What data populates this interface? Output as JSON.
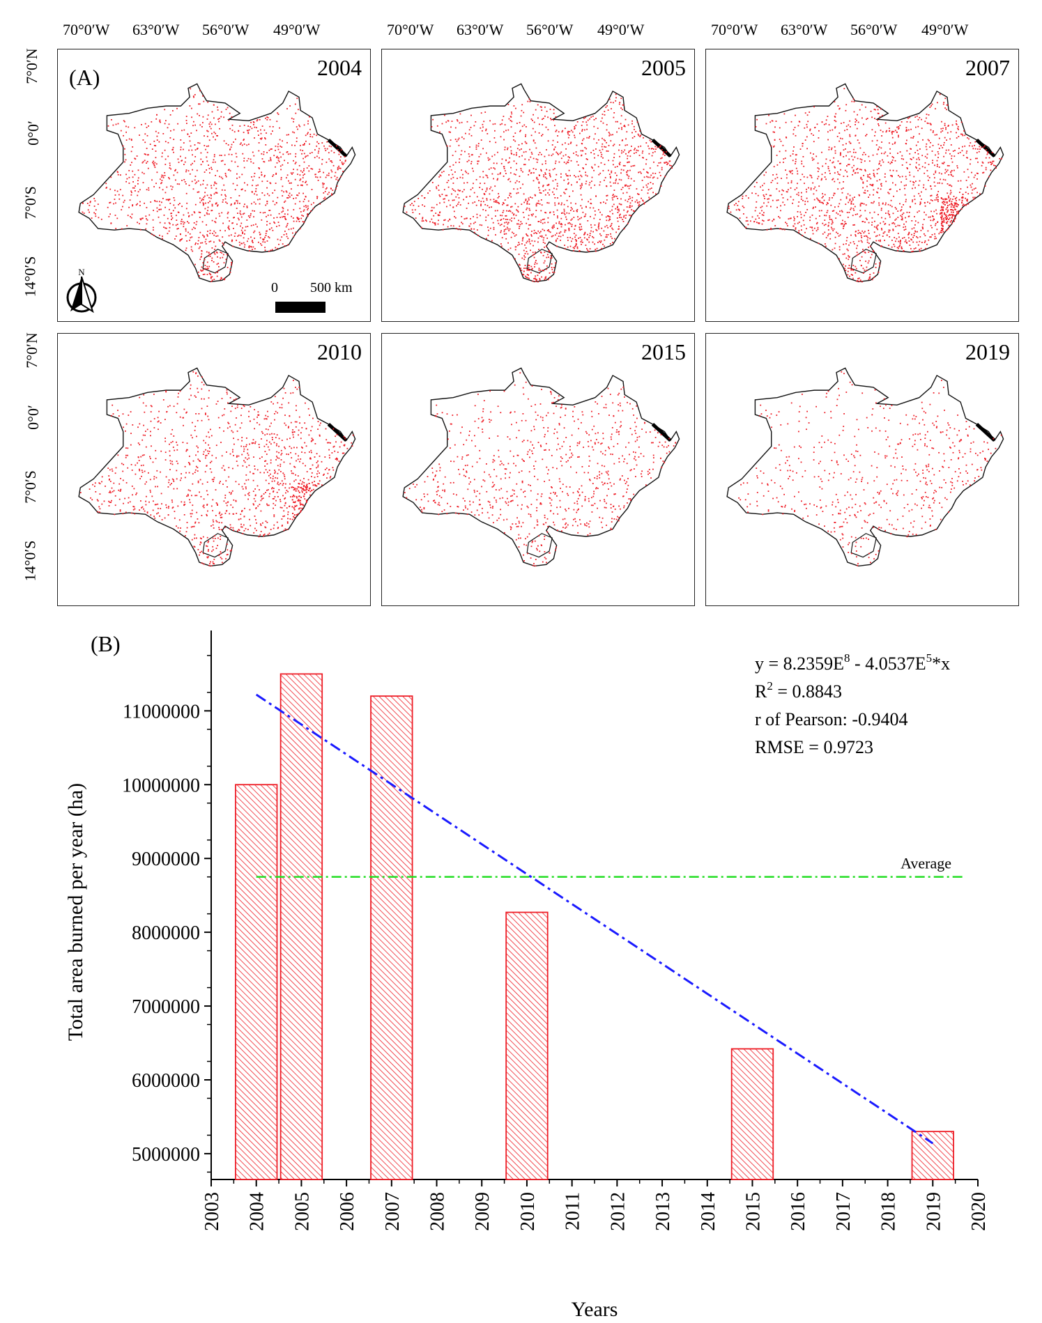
{
  "map_panel": {
    "label": "(A)",
    "lon_labels": [
      "70°0′W",
      "63°0′W",
      "56°0′W",
      "49°0′W"
    ],
    "lat_labels": [
      "7°0′N",
      "0°0′",
      "7°0′S",
      "14°0′S"
    ],
    "maps": [
      {
        "year": "2004",
        "intensity": 0.85
      },
      {
        "year": "2005",
        "intensity": 1.0
      },
      {
        "year": "2007",
        "intensity": 0.95
      },
      {
        "year": "2010",
        "intensity": 0.7
      },
      {
        "year": "2015",
        "intensity": 0.5
      },
      {
        "year": "2019",
        "intensity": 0.35
      }
    ],
    "scale_bar": {
      "zero": "0",
      "distance": "500 km"
    },
    "north_arrow": {
      "label": "N",
      "icon": "north-arrow-icon"
    },
    "colors": {
      "burned": "#ee1c25",
      "outline": "#111111"
    }
  },
  "chart_data": {
    "type": "bar",
    "panel_label": "(B)",
    "categories": [
      2004,
      2005,
      2007,
      2010,
      2015,
      2019
    ],
    "values": [
      10000000,
      11500000,
      11200000,
      8270000,
      6420000,
      5300000
    ],
    "xlabel": "Years",
    "ylabel": "Total area burned per year (ha)",
    "xlim": [
      2003,
      2020
    ],
    "ylim": [
      4650000,
      11900000
    ],
    "xticks": [
      2003,
      2004,
      2005,
      2006,
      2007,
      2008,
      2009,
      2010,
      2011,
      2012,
      2013,
      2014,
      2015,
      2016,
      2017,
      2018,
      2019,
      2020
    ],
    "yticks": [
      5000000,
      6000000,
      7000000,
      8000000,
      9000000,
      10000000,
      11000000
    ],
    "ytick_labels": [
      "5000000",
      "6000000",
      "7000000",
      "8000000",
      "9000000",
      "10000000",
      "11000000"
    ],
    "trend": {
      "x": [
        2004,
        2019
      ],
      "y": [
        11220000,
        5140000
      ],
      "color": "#1a1aff",
      "style": "dash-dot"
    },
    "average": {
      "value": 8750000,
      "label": "Average",
      "x": [
        2004,
        2020
      ],
      "color": "#22dd22",
      "style": "dash-dot"
    },
    "bar_color": "#ee1c25",
    "annotations": {
      "equation_prefix": "y = 8.2359E",
      "equation_exp1": "8",
      "equation_mid": " - 4.0537E",
      "equation_exp2": "5",
      "equation_suffix": "*x",
      "r2_prefix": "R",
      "r2_exp": "2",
      "r2_suffix": " = 0.8843",
      "pearson": "r of Pearson: -0.9404",
      "rmse": "RMSE = 0.9723"
    }
  }
}
